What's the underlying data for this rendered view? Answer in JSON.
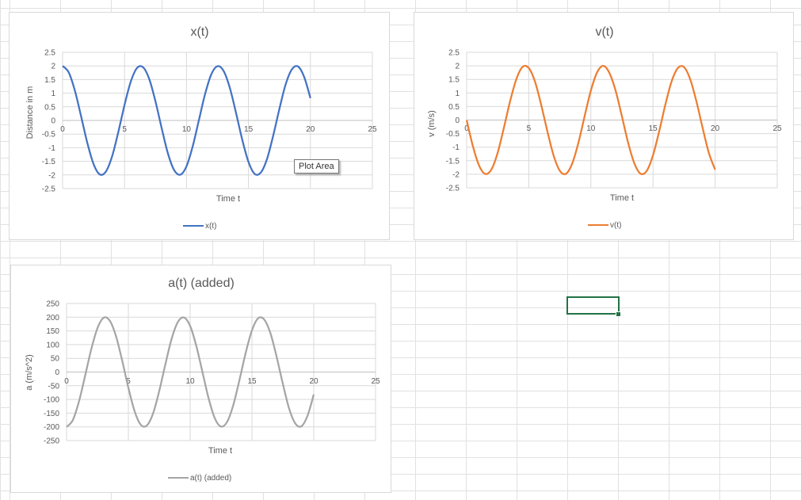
{
  "colors": {
    "gridline": "#e1e1e1",
    "chart_gridline": "#d9d9d9",
    "axis": "#bfbfbf",
    "text": "#595959",
    "selection": "#217346"
  },
  "tooltip": {
    "text": "Plot Area"
  },
  "chart_data": [
    {
      "type": "line",
      "title": "x(t)",
      "xlabel": "Time t",
      "ylabel": "Distance in m",
      "xlim": [
        0,
        25
      ],
      "ylim": [
        -2.5,
        2.5
      ],
      "x_ticks": [
        "0",
        "5",
        "10",
        "15",
        "20",
        "25"
      ],
      "y_ticks": [
        "2.5",
        "2",
        "1.5",
        "1",
        "0.5",
        "0",
        "-0.5",
        "-1",
        "-1.5",
        "-2",
        "-2.5"
      ],
      "grid": true,
      "legend": "bottom",
      "series": [
        {
          "name": "x(t)",
          "color": "#4472c4",
          "x": [
            0,
            0.5,
            1,
            1.5,
            2,
            2.5,
            3,
            3.5,
            4,
            4.5,
            5,
            5.5,
            6,
            6.5,
            7,
            7.5,
            8,
            8.5,
            9,
            9.5,
            10,
            10.5,
            11,
            11.5,
            12,
            12.5,
            13,
            13.5,
            14,
            14.5,
            15,
            15.5,
            16,
            16.5,
            17,
            17.5,
            18,
            18.5,
            19,
            19.5,
            20
          ],
          "y": [
            2,
            1.76,
            1.08,
            0.14,
            -0.83,
            -1.6,
            -1.98,
            -1.87,
            -1.31,
            -0.42,
            0.57,
            1.42,
            1.92,
            1.95,
            1.51,
            0.69,
            -0.29,
            -1.21,
            -1.82,
            -1.99,
            -1.68,
            -0.95,
            0.01,
            0.97,
            1.69,
            1.99,
            1.81,
            1.19,
            0.27,
            -0.71,
            -1.52,
            -1.96,
            -1.91,
            -1.41,
            -0.55,
            0.43,
            1.32,
            1.87,
            1.98,
            1.59,
            0.82
          ]
        }
      ]
    },
    {
      "type": "line",
      "title": "v(t)",
      "xlabel": "Time t",
      "ylabel": "v (m/s)",
      "xlim": [
        0,
        25
      ],
      "ylim": [
        -2.5,
        2.5
      ],
      "x_ticks": [
        "0",
        "5",
        "10",
        "15",
        "20",
        "25"
      ],
      "y_ticks": [
        "2.5",
        "2",
        "1.5",
        "1",
        "0.5",
        "0",
        "-0.5",
        "-1",
        "-1.5",
        "-2",
        "-2.5"
      ],
      "grid": true,
      "legend": "bottom",
      "series": [
        {
          "name": "v(t)",
          "color": "#ed7d31",
          "x": [
            0,
            0.5,
            1,
            1.5,
            2,
            2.5,
            3,
            3.5,
            4,
            4.5,
            5,
            5.5,
            6,
            6.5,
            7,
            7.5,
            8,
            8.5,
            9,
            9.5,
            10,
            10.5,
            11,
            11.5,
            12,
            12.5,
            13,
            13.5,
            14,
            14.5,
            15,
            15.5,
            16,
            16.5,
            17,
            17.5,
            18,
            18.5,
            19,
            19.5,
            20
          ],
          "y": [
            0,
            -0.96,
            -1.68,
            -1.99,
            -1.82,
            -1.2,
            -0.28,
            0.7,
            1.51,
            1.96,
            1.92,
            1.42,
            0.56,
            -0.42,
            -1.31,
            -1.87,
            -1.98,
            -1.6,
            -0.83,
            0.15,
            1.09,
            1.76,
            2,
            1.73,
            1.07,
            0.13,
            -0.84,
            -1.6,
            -1.98,
            -1.87,
            -1.3,
            -0.41,
            0.58,
            1.43,
            1.92,
            1.95,
            1.5,
            0.68,
            -0.3,
            -1.22,
            -1.83
          ]
        }
      ]
    },
    {
      "type": "line",
      "title": "a(t) (added)",
      "xlabel": "Time t",
      "ylabel": "a (m/s^2)",
      "xlim": [
        0,
        25
      ],
      "ylim": [
        -250,
        250
      ],
      "x_ticks": [
        "0",
        "5",
        "10",
        "15",
        "20",
        "25"
      ],
      "y_ticks": [
        "250",
        "200",
        "150",
        "100",
        "50",
        "0",
        "-50",
        "-100",
        "-150",
        "-200",
        "-250"
      ],
      "grid": true,
      "legend": "bottom",
      "series": [
        {
          "name": "a(t) (added)",
          "color": "#a5a5a5",
          "x": [
            0,
            0.5,
            1,
            1.5,
            2,
            2.5,
            3,
            3.5,
            4,
            4.5,
            5,
            5.5,
            6,
            6.5,
            7,
            7.5,
            8,
            8.5,
            9,
            9.5,
            10,
            10.5,
            11,
            11.5,
            12,
            12.5,
            13,
            13.5,
            14,
            14.5,
            15,
            15.5,
            16,
            16.5,
            17,
            17.5,
            18,
            18.5,
            19,
            19.5,
            20
          ],
          "y": [
            -200,
            -176,
            -108,
            -14,
            83,
            160,
            198,
            187,
            131,
            42,
            -57,
            -142,
            -192,
            -195,
            -151,
            -69,
            29,
            121,
            182,
            199,
            168,
            95,
            -1,
            -97,
            -169,
            -199,
            -181,
            -119,
            -27,
            71,
            152,
            196,
            191,
            141,
            55,
            -43,
            -132,
            -187,
            -198,
            -159,
            -82
          ]
        }
      ]
    }
  ]
}
